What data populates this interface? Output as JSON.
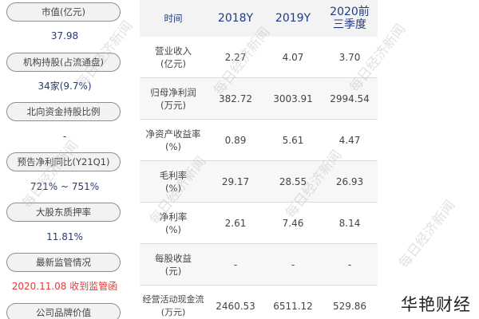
{
  "left_panel": {
    "items": [
      {
        "label": "市值(亿元)",
        "value": "37.98"
      },
      {
        "label": "机构持股(占流通盘)",
        "value": "34家(9.7%)"
      },
      {
        "label": "北向资金持股比例",
        "value": "-"
      },
      {
        "label": "预告净利同比(Y21Q1)",
        "value": "721% ~ 751%"
      },
      {
        "label": "大股东质押率",
        "value": "11.81%"
      },
      {
        "label": "最新监管情况",
        "value": "2020.11.08 收到监管函"
      },
      {
        "label": "公司品牌价值",
        "value": ""
      }
    ]
  },
  "table": {
    "headers": [
      "时间",
      "2018Y",
      "2019Y",
      "2020前三季度"
    ],
    "rows": [
      {
        "metric": "营业收入(亿元)",
        "values": [
          "2.27",
          "4.07",
          "3.70"
        ]
      },
      {
        "metric": "归母净利润(万元)",
        "values": [
          "382.72",
          "3003.91",
          "2994.54"
        ]
      },
      {
        "metric": "净资产收益率(%)",
        "values": [
          "0.89",
          "5.61",
          "4.47"
        ]
      },
      {
        "metric": "毛利率(%)",
        "values": [
          "29.17",
          "28.55",
          "26.93"
        ]
      },
      {
        "metric": "净利率(%)",
        "values": [
          "2.61",
          "7.46",
          "8.14"
        ]
      },
      {
        "metric": "每股收益(元)",
        "values": [
          "-",
          "-",
          "-"
        ]
      },
      {
        "metric": "经营活动现金流(万元)",
        "values": [
          "2460.53",
          "6511.12",
          "529.86"
        ]
      }
    ]
  },
  "watermark": "每日经济新闻",
  "brand": "华艳财经",
  "colors": {
    "value_blue": "#2b3a6b",
    "header_blue": "#1e3a8a",
    "alert_red": "#e53935"
  }
}
